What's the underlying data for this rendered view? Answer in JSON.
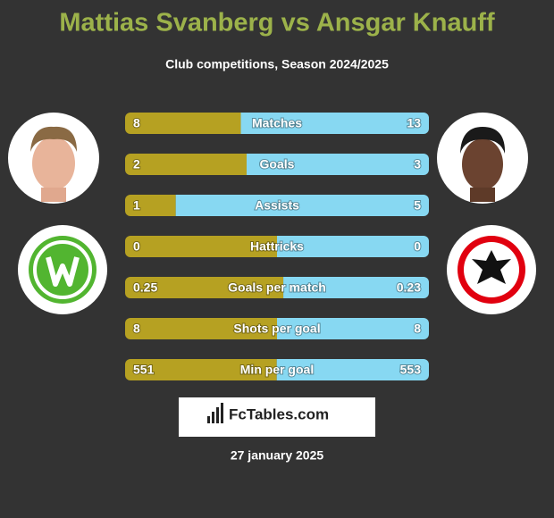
{
  "title": "Mattias Svanberg vs Ansgar Knauff",
  "subtitle": "Club competitions, Season 2024/2025",
  "colors": {
    "left": "#b6a122",
    "right": "#87d8f2",
    "title": "#9cb24a"
  },
  "rows": [
    {
      "label": "Matches",
      "left": 8,
      "right": 13
    },
    {
      "label": "Goals",
      "left": 2,
      "right": 3
    },
    {
      "label": "Assists",
      "left": 1,
      "right": 5
    },
    {
      "label": "Hattricks",
      "left": 0,
      "right": 0
    },
    {
      "label": "Goals per match",
      "left": 0.25,
      "right": 0.23
    },
    {
      "label": "Shots per goal",
      "left": 8,
      "right": 8
    },
    {
      "label": "Min per goal",
      "left": 551,
      "right": 553
    }
  ],
  "brand": "FcTables.com",
  "date": "27 january 2025"
}
